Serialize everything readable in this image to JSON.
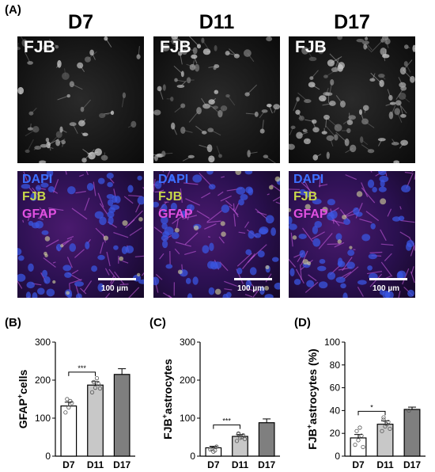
{
  "panel_a": {
    "letter": "(A)",
    "columns": [
      {
        "title": "D7",
        "top_label": "FJB",
        "channels": [
          "DAPI",
          "FJB",
          "GFAP"
        ],
        "scale": "100 µm"
      },
      {
        "title": "D11",
        "top_label": "FJB",
        "channels": [
          "DAPI",
          "FJB",
          "GFAP"
        ],
        "scale": "100 µm"
      },
      {
        "title": "D17",
        "top_label": "FJB",
        "channels": [
          "DAPI",
          "FJB",
          "GFAP"
        ],
        "scale": "100 µm"
      }
    ],
    "channel_colors": {
      "DAPI": "#3d6fff",
      "FJB": "#c8d84a",
      "GFAP": "#e050e0"
    }
  },
  "chart_data": [
    {
      "panel": "(B)",
      "type": "bar",
      "categories": [
        "D7",
        "D11",
        "D17"
      ],
      "values": [
        132,
        187,
        215
      ],
      "errors": [
        10,
        9,
        15
      ],
      "points": [
        [
          115,
          128,
          140,
          150,
          145
        ],
        [
          168,
          180,
          190,
          195,
          205,
          178
        ],
        []
      ],
      "ylabel_main": "GFAP",
      "ylabel_sup": "+",
      "ylabel_rest": "cells",
      "ylim": [
        0,
        300
      ],
      "yticks": [
        0,
        100,
        200,
        300
      ],
      "bar_colors": [
        "#ffffff",
        "#c8c8c8",
        "#7f7f7f"
      ],
      "significance": [
        {
          "from": "D7",
          "to": "D11",
          "label": "***"
        }
      ]
    },
    {
      "panel": "(C)",
      "type": "bar",
      "categories": [
        "D7",
        "D11",
        "D17"
      ],
      "values": [
        22,
        52,
        88
      ],
      "errors": [
        4,
        5,
        10
      ],
      "points": [
        [
          18,
          12,
          25,
          20,
          15
        ],
        [
          40,
          48,
          55,
          60,
          50,
          45,
          58
        ],
        []
      ],
      "ylabel_main": "FJB",
      "ylabel_sup": "+",
      "ylabel_rest": "astrocytes",
      "ylim": [
        0,
        300
      ],
      "yticks": [
        0,
        100,
        200,
        300
      ],
      "bar_colors": [
        "#ffffff",
        "#c8c8c8",
        "#7f7f7f"
      ],
      "significance": [
        {
          "from": "D7",
          "to": "D11",
          "label": "***"
        }
      ]
    },
    {
      "panel": "(D)",
      "type": "bar",
      "categories": [
        "D7",
        "D11",
        "D17"
      ],
      "values": [
        16,
        28,
        41
      ],
      "errors": [
        3,
        3,
        2
      ],
      "points": [
        [
          10,
          14,
          18,
          22,
          25,
          8
        ],
        [
          22,
          26,
          30,
          34,
          28,
          24,
          32
        ],
        [
          40
        ]
      ],
      "ylabel_main": "FJB",
      "ylabel_sup": "+",
      "ylabel_rest": "astrocytes (%)",
      "ylim": [
        0,
        100
      ],
      "yticks": [
        0,
        20,
        40,
        60,
        80,
        100
      ],
      "bar_colors": [
        "#ffffff",
        "#c8c8c8",
        "#7f7f7f"
      ],
      "significance": [
        {
          "from": "D7",
          "to": "D11",
          "label": "*"
        }
      ]
    }
  ]
}
